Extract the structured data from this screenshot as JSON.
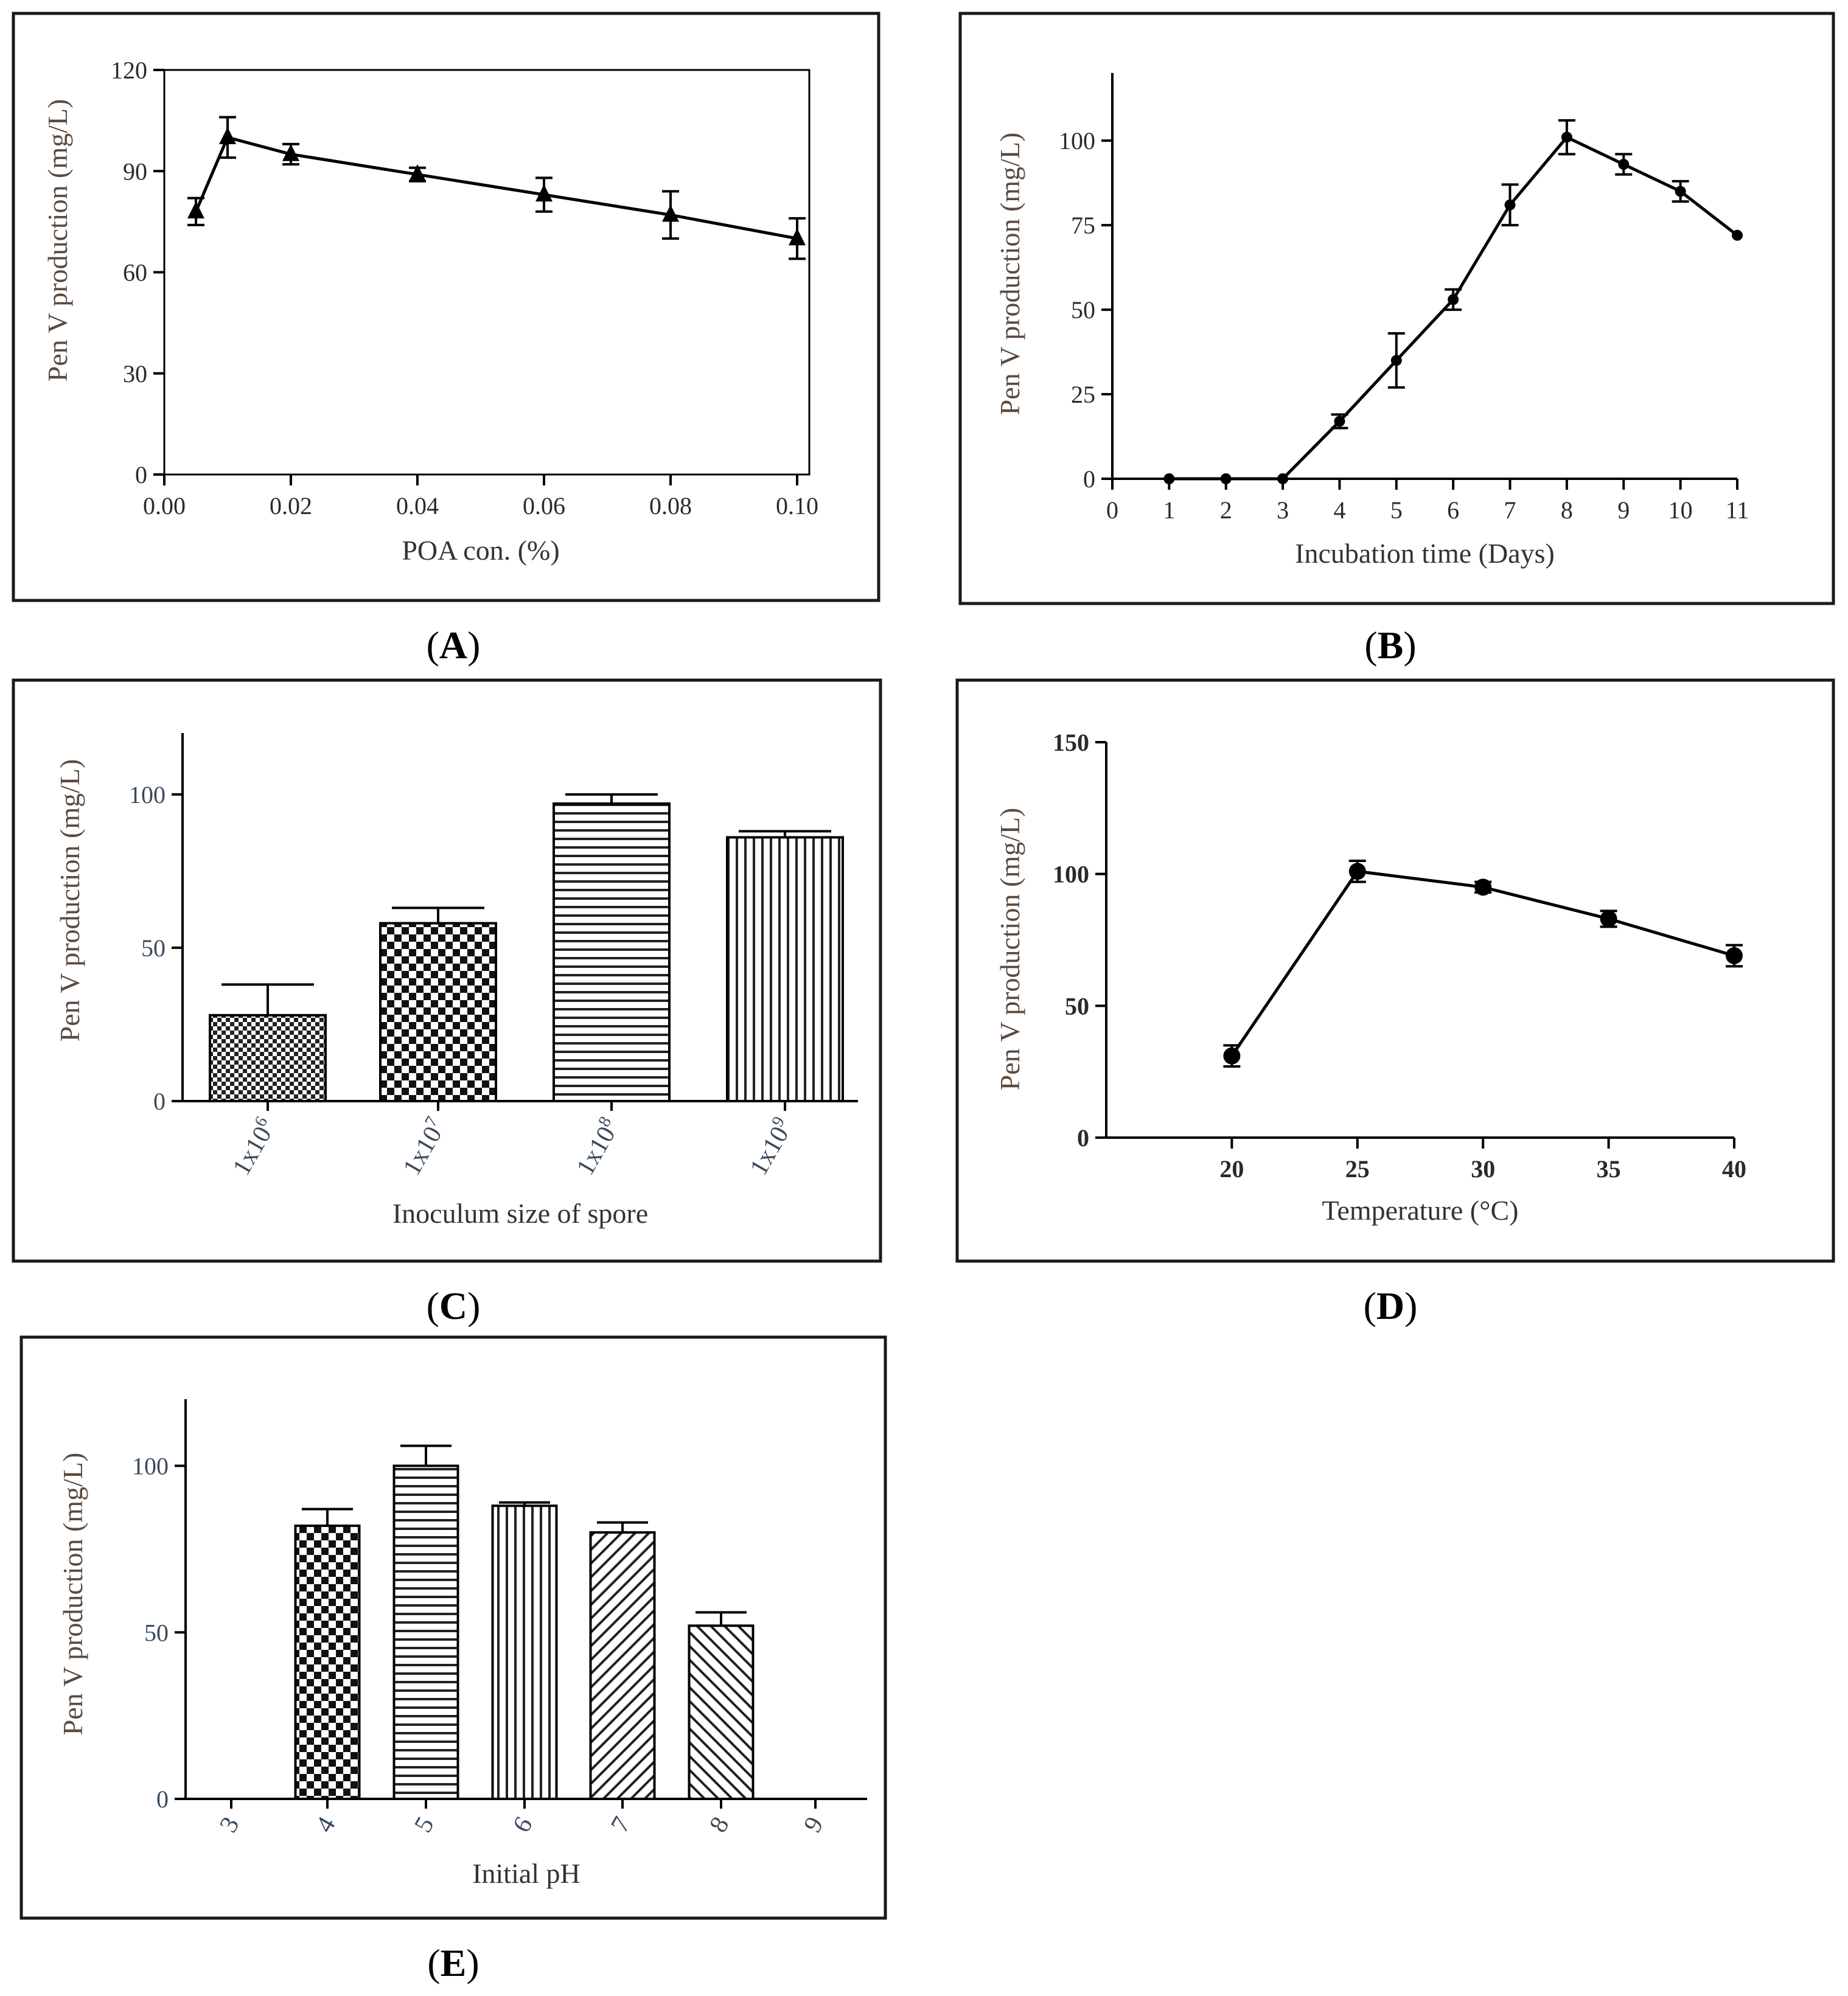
{
  "colors": {
    "ink": "#000000",
    "panel_border": "#1a1a1a",
    "ylabel": "#5a4a3f",
    "blue_tick": "#3a4a5c"
  },
  "chart_data": [
    {
      "id": "A",
      "type": "line",
      "caption": "A",
      "xlabel": "POA con. (%)",
      "ylabel": "Pen V production (mg/L)",
      "xlim": [
        0,
        0.1
      ],
      "ylim": [
        0,
        120
      ],
      "x_ticks": [
        "0.00",
        "0.02",
        "0.04",
        "0.06",
        "0.08",
        "0.10"
      ],
      "y_ticks": [
        "0",
        "30",
        "60",
        "90",
        "120"
      ],
      "marker": "triangle",
      "grid": false,
      "series": [
        {
          "x": [
            0.005,
            0.01,
            0.02,
            0.04,
            0.06,
            0.08,
            0.1
          ],
          "y": [
            78,
            100,
            95,
            89,
            83,
            77,
            70
          ],
          "err": [
            4,
            6,
            3,
            2,
            5,
            7,
            6
          ]
        }
      ]
    },
    {
      "id": "B",
      "type": "line",
      "caption": "B",
      "xlabel": "Incubation time (Days)",
      "ylabel": "Pen V production (mg/L)",
      "xlim": [
        0,
        11
      ],
      "ylim": [
        0,
        120
      ],
      "x_ticks": [
        "0",
        "1",
        "2",
        "3",
        "4",
        "5",
        "6",
        "7",
        "8",
        "9",
        "10",
        "11"
      ],
      "y_ticks": [
        "0",
        "25",
        "50",
        "75",
        "100"
      ],
      "marker": "circle",
      "grid": false,
      "series": [
        {
          "x": [
            1,
            2,
            3,
            4,
            5,
            6,
            7,
            8,
            9,
            10,
            11
          ],
          "y": [
            0,
            0,
            0,
            17,
            35,
            53,
            81,
            101,
            93,
            85,
            72
          ],
          "err": [
            0,
            0,
            0,
            2,
            8,
            3,
            6,
            5,
            3,
            3,
            0
          ]
        }
      ]
    },
    {
      "id": "C",
      "type": "bar",
      "caption": "C",
      "xlabel": "Inoculum size of spore",
      "ylabel": "Pen V production (mg/L)",
      "ylim": [
        0,
        120
      ],
      "categories": [
        {
          "base": "1x10",
          "exp": "6"
        },
        {
          "base": "1x10",
          "exp": "7"
        },
        {
          "base": "1x10",
          "exp": "8"
        },
        {
          "base": "1x10",
          "exp": "9"
        }
      ],
      "y_ticks": [
        "0",
        "50",
        "100"
      ],
      "patterns": [
        "checker-fine",
        "checker",
        "horizontal",
        "vertical"
      ],
      "values": [
        28,
        58,
        97,
        86
      ],
      "err": [
        10,
        5,
        3,
        2
      ]
    },
    {
      "id": "D",
      "type": "line",
      "caption": "D",
      "xlabel": "Temperature (°C)",
      "ylabel": "Pen V production (mg/L)",
      "xlim": [
        15,
        40
      ],
      "ylim": [
        0,
        150
      ],
      "x_ticks": [
        "20",
        "25",
        "30",
        "35",
        "40"
      ],
      "y_ticks": [
        "0",
        "50",
        "100",
        "150"
      ],
      "marker": "circle",
      "grid": false,
      "series": [
        {
          "x": [
            20,
            25,
            30,
            35,
            40
          ],
          "y": [
            31,
            101,
            95,
            83,
            69
          ],
          "err": [
            4,
            4,
            2,
            3,
            4
          ]
        }
      ]
    },
    {
      "id": "E",
      "type": "bar",
      "caption": "E",
      "xlabel": "Initial pH",
      "ylabel": "Pen V production (mg/L)",
      "ylim": [
        0,
        120
      ],
      "categories": [
        "3",
        "4",
        "5",
        "6",
        "7",
        "8",
        "9"
      ],
      "y_ticks": [
        "0",
        "50",
        "100"
      ],
      "patterns": [
        "none",
        "checker",
        "horizontal",
        "vertical",
        "diag-right",
        "diag-left",
        "none"
      ],
      "values": [
        0,
        82,
        100,
        88,
        80,
        52,
        0
      ],
      "err": [
        0,
        5,
        6,
        1,
        3,
        4,
        0
      ]
    }
  ]
}
